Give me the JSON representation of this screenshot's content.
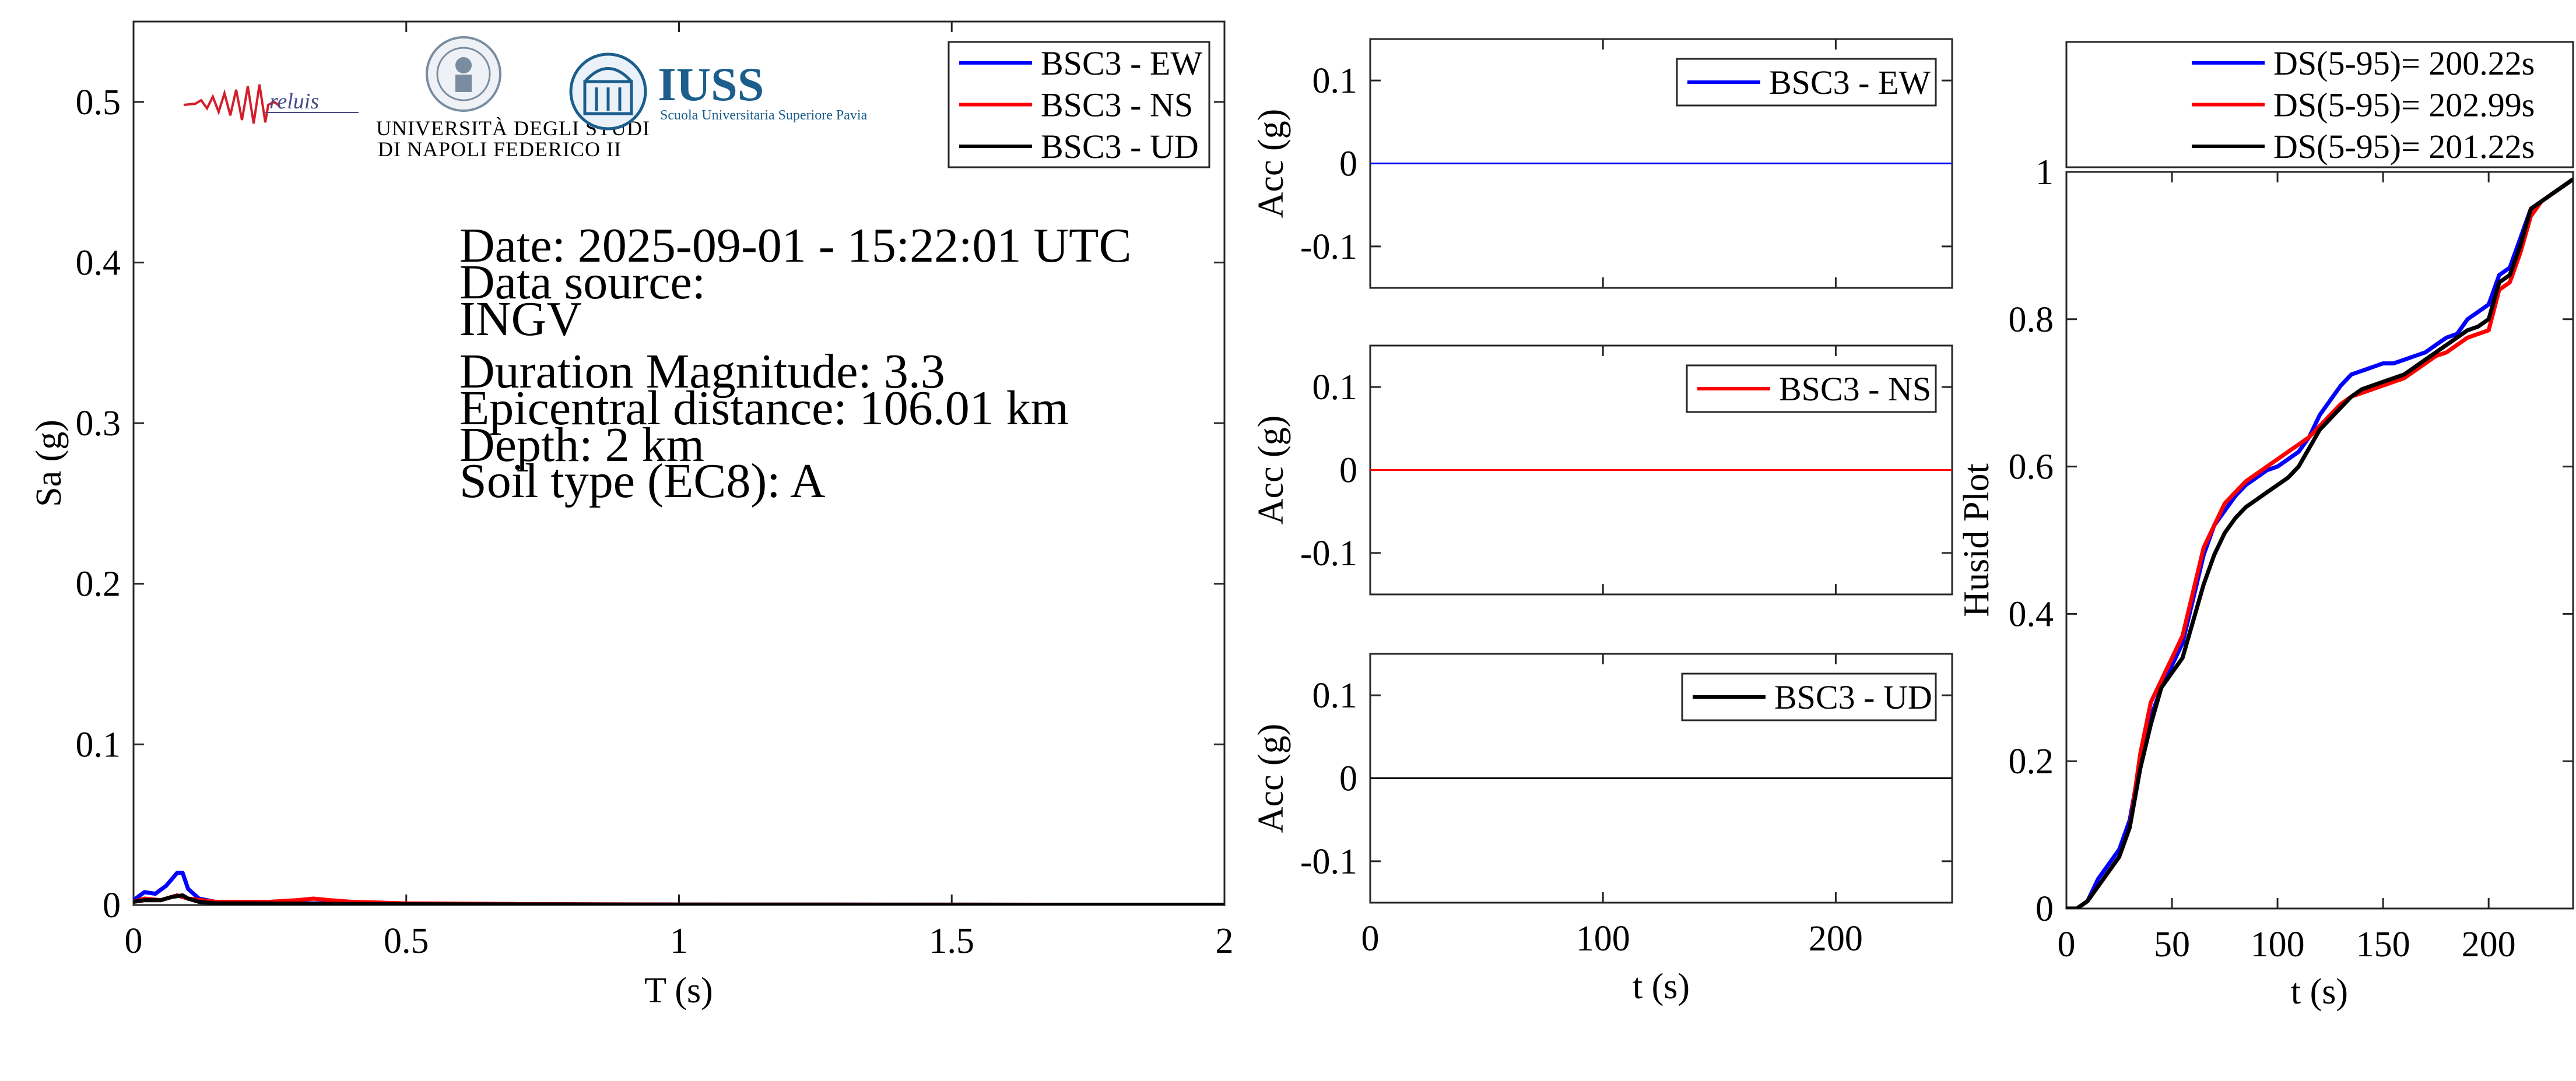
{
  "colors": {
    "ew": "#0000ff",
    "ns": "#ff0000",
    "ud": "#000000"
  },
  "logos": {
    "reluis": "reluis",
    "unina_line1": "UNIVERSITÀ DEGLI STUDI",
    "unina_line2": "DI NAPOLI FEDERICO II",
    "iuss_name": "IUSS",
    "iuss_subtitle": "Scuola Universitaria Superiore Pavia"
  },
  "info": {
    "date": "Date: 2025-09-01 - 15:22:01 UTC",
    "source_label": "Data source:",
    "source": "INGV",
    "magnitude": "Duration Magnitude: 3.3",
    "distance": "Epicentral distance: 106.01 km",
    "depth": "Depth: 2 km",
    "soil": "Soil type (EC8): A"
  },
  "chart_data": [
    {
      "type": "line",
      "xlabel": "T (s)",
      "ylabel": "Sa (g)",
      "xlim": [
        0,
        2
      ],
      "ylim": [
        0,
        0.55
      ],
      "xticks": [
        "0",
        "0.5",
        "1",
        "1.5",
        "2"
      ],
      "yticks": [
        "0",
        "0.1",
        "0.2",
        "0.3",
        "0.4",
        "0.5"
      ],
      "legend": "top-right",
      "grid": false,
      "series": [
        {
          "name": "BSC3 - EW",
          "color_key": "ew",
          "x": [
            0,
            0.02,
            0.04,
            0.06,
            0.08,
            0.09,
            0.1,
            0.12,
            0.15,
            0.2,
            0.3,
            0.4,
            0.6,
            1.0,
            1.5,
            2.0
          ],
          "y": [
            0.003,
            0.008,
            0.007,
            0.012,
            0.02,
            0.02,
            0.01,
            0.004,
            0.002,
            0.002,
            0.001,
            0.001,
            0.0005,
            0.0003,
            0.0002,
            0.0001
          ]
        },
        {
          "name": "BSC3 - NS",
          "color_key": "ns",
          "x": [
            0,
            0.02,
            0.05,
            0.08,
            0.1,
            0.15,
            0.2,
            0.25,
            0.3,
            0.33,
            0.36,
            0.4,
            0.5,
            0.7,
            1.0,
            1.5,
            2.0
          ],
          "y": [
            0.002,
            0.004,
            0.003,
            0.006,
            0.004,
            0.002,
            0.002,
            0.002,
            0.003,
            0.004,
            0.003,
            0.002,
            0.001,
            0.0006,
            0.0003,
            0.0002,
            0.0001
          ]
        },
        {
          "name": "BSC3 - UD",
          "color_key": "ud",
          "x": [
            0,
            0.02,
            0.05,
            0.07,
            0.09,
            0.1,
            0.12,
            0.15,
            0.2,
            0.3,
            0.5,
            1.0,
            1.5,
            2.0
          ],
          "y": [
            0.002,
            0.003,
            0.003,
            0.005,
            0.006,
            0.004,
            0.002,
            0.001,
            0.001,
            0.0008,
            0.0005,
            0.0002,
            0.0001,
            0.0001
          ]
        }
      ]
    },
    {
      "type": "line",
      "ylabel": "Acc (g)",
      "xlim": [
        0,
        250
      ],
      "ylim": [
        -0.15,
        0.15
      ],
      "yticks": [
        "-0.1",
        "0",
        "0.1"
      ],
      "legend": "top-right",
      "series": [
        {
          "name": "BSC3 - EW",
          "color_key": "ew",
          "x": [
            0,
            250
          ],
          "y": [
            0,
            0
          ]
        }
      ]
    },
    {
      "type": "line",
      "ylabel": "Acc (g)",
      "xlim": [
        0,
        250
      ],
      "ylim": [
        -0.15,
        0.15
      ],
      "yticks": [
        "-0.1",
        "0",
        "0.1"
      ],
      "legend": "top-right",
      "series": [
        {
          "name": "BSC3 - NS",
          "color_key": "ns",
          "x": [
            0,
            250
          ],
          "y": [
            0,
            0
          ]
        }
      ]
    },
    {
      "type": "line",
      "xlabel": "t (s)",
      "ylabel": "Acc (g)",
      "xlim": [
        0,
        250
      ],
      "ylim": [
        -0.15,
        0.15
      ],
      "xticks": [
        "0",
        "100",
        "200"
      ],
      "yticks": [
        "-0.1",
        "0",
        "0.1"
      ],
      "legend": "top-right",
      "series": [
        {
          "name": "BSC3 - UD",
          "color_key": "ud",
          "x": [
            0,
            250
          ],
          "y": [
            0,
            0
          ]
        }
      ]
    },
    {
      "type": "line",
      "xlabel": "t (s)",
      "ylabel": "Husid Plot",
      "xlim": [
        0,
        240
      ],
      "ylim": [
        0,
        1
      ],
      "xticks": [
        "0",
        "50",
        "100",
        "150",
        "200"
      ],
      "yticks": [
        "0",
        "0.2",
        "0.4",
        "0.6",
        "0.8",
        "1"
      ],
      "legend": "top (outside)",
      "series": [
        {
          "name": "DS(5-95)= 200.22s",
          "color_key": "ew",
          "x": [
            0,
            5,
            10,
            15,
            20,
            25,
            30,
            35,
            40,
            45,
            50,
            55,
            60,
            65,
            70,
            75,
            80,
            85,
            90,
            95,
            100,
            105,
            110,
            115,
            120,
            125,
            130,
            135,
            140,
            145,
            150,
            155,
            160,
            165,
            170,
            175,
            180,
            185,
            190,
            195,
            200,
            205,
            210,
            215,
            220,
            225,
            230,
            235,
            240
          ],
          "y": [
            0,
            0,
            0.01,
            0.04,
            0.06,
            0.08,
            0.12,
            0.2,
            0.26,
            0.3,
            0.33,
            0.36,
            0.42,
            0.48,
            0.52,
            0.54,
            0.56,
            0.575,
            0.585,
            0.595,
            0.6,
            0.61,
            0.62,
            0.64,
            0.67,
            0.69,
            0.71,
            0.725,
            0.73,
            0.735,
            0.74,
            0.74,
            0.745,
            0.75,
            0.755,
            0.765,
            0.775,
            0.78,
            0.8,
            0.81,
            0.82,
            0.86,
            0.87,
            0.91,
            0.95,
            0.96,
            0.97,
            0.98,
            0.99
          ]
        },
        {
          "name": "DS(5-95)= 202.99s",
          "color_key": "ns",
          "x": [
            0,
            5,
            10,
            15,
            20,
            25,
            30,
            35,
            40,
            45,
            50,
            55,
            60,
            65,
            70,
            75,
            80,
            85,
            90,
            95,
            100,
            105,
            110,
            115,
            120,
            125,
            130,
            135,
            140,
            145,
            150,
            155,
            160,
            165,
            170,
            175,
            180,
            185,
            190,
            195,
            200,
            205,
            210,
            215,
            220,
            225,
            230,
            235,
            240
          ],
          "y": [
            0,
            0,
            0.01,
            0.03,
            0.05,
            0.07,
            0.11,
            0.21,
            0.28,
            0.31,
            0.34,
            0.37,
            0.43,
            0.49,
            0.52,
            0.55,
            0.565,
            0.58,
            0.59,
            0.6,
            0.61,
            0.62,
            0.63,
            0.64,
            0.655,
            0.67,
            0.685,
            0.695,
            0.7,
            0.705,
            0.71,
            0.715,
            0.72,
            0.73,
            0.74,
            0.75,
            0.755,
            0.765,
            0.775,
            0.78,
            0.785,
            0.84,
            0.85,
            0.89,
            0.94,
            0.96,
            0.97,
            0.98,
            0.99
          ]
        },
        {
          "name": "DS(5-95)= 201.22s",
          "color_key": "ud",
          "x": [
            0,
            5,
            10,
            15,
            20,
            25,
            30,
            35,
            40,
            45,
            50,
            55,
            60,
            65,
            70,
            75,
            80,
            85,
            90,
            95,
            100,
            105,
            110,
            115,
            120,
            125,
            130,
            135,
            140,
            145,
            150,
            155,
            160,
            165,
            170,
            175,
            180,
            185,
            190,
            195,
            200,
            205,
            210,
            215,
            220,
            225,
            230,
            235,
            240
          ],
          "y": [
            0,
            0,
            0.01,
            0.03,
            0.05,
            0.07,
            0.11,
            0.19,
            0.25,
            0.3,
            0.32,
            0.34,
            0.39,
            0.44,
            0.48,
            0.51,
            0.53,
            0.545,
            0.555,
            0.565,
            0.575,
            0.585,
            0.6,
            0.625,
            0.65,
            0.665,
            0.68,
            0.695,
            0.705,
            0.71,
            0.715,
            0.72,
            0.725,
            0.735,
            0.745,
            0.755,
            0.765,
            0.775,
            0.785,
            0.79,
            0.8,
            0.85,
            0.86,
            0.9,
            0.95,
            0.96,
            0.97,
            0.98,
            0.99
          ]
        }
      ]
    }
  ]
}
